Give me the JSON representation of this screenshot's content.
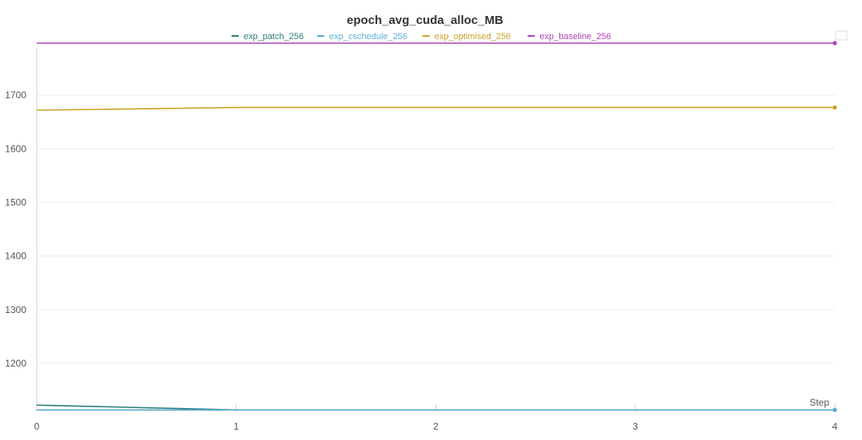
{
  "chart_data": {
    "type": "line",
    "title": "epoch_avg_cuda_alloc_MB",
    "xlabel": "Step",
    "ylabel": "",
    "x": [
      0,
      1,
      2,
      3,
      4
    ],
    "xlim": [
      0,
      4
    ],
    "ylim": [
      1112,
      1800
    ],
    "x_ticks": [
      "0",
      "1",
      "2",
      "3",
      "4"
    ],
    "y_ticks": [
      "1200",
      "1300",
      "1400",
      "1500",
      "1600",
      "1700"
    ],
    "grid": true,
    "legend_position": "top",
    "series": [
      {
        "name": "exp_patch_256",
        "color": "#2a7f78",
        "values": [
          1122,
          1113,
          1113,
          1113,
          1113
        ]
      },
      {
        "name": "exp_cschedule_256",
        "color": "#5ab0d6",
        "values": [
          1113,
          1113,
          1113,
          1113,
          1113
        ]
      },
      {
        "name": "exp_optimised_256",
        "color": "#c9a227",
        "values": [
          1672,
          1677,
          1677,
          1677,
          1677
        ]
      },
      {
        "name": "exp_baseline_256",
        "color": "#b042b8",
        "values": [
          1797,
          1797,
          1797,
          1797,
          1797
        ]
      }
    ]
  }
}
